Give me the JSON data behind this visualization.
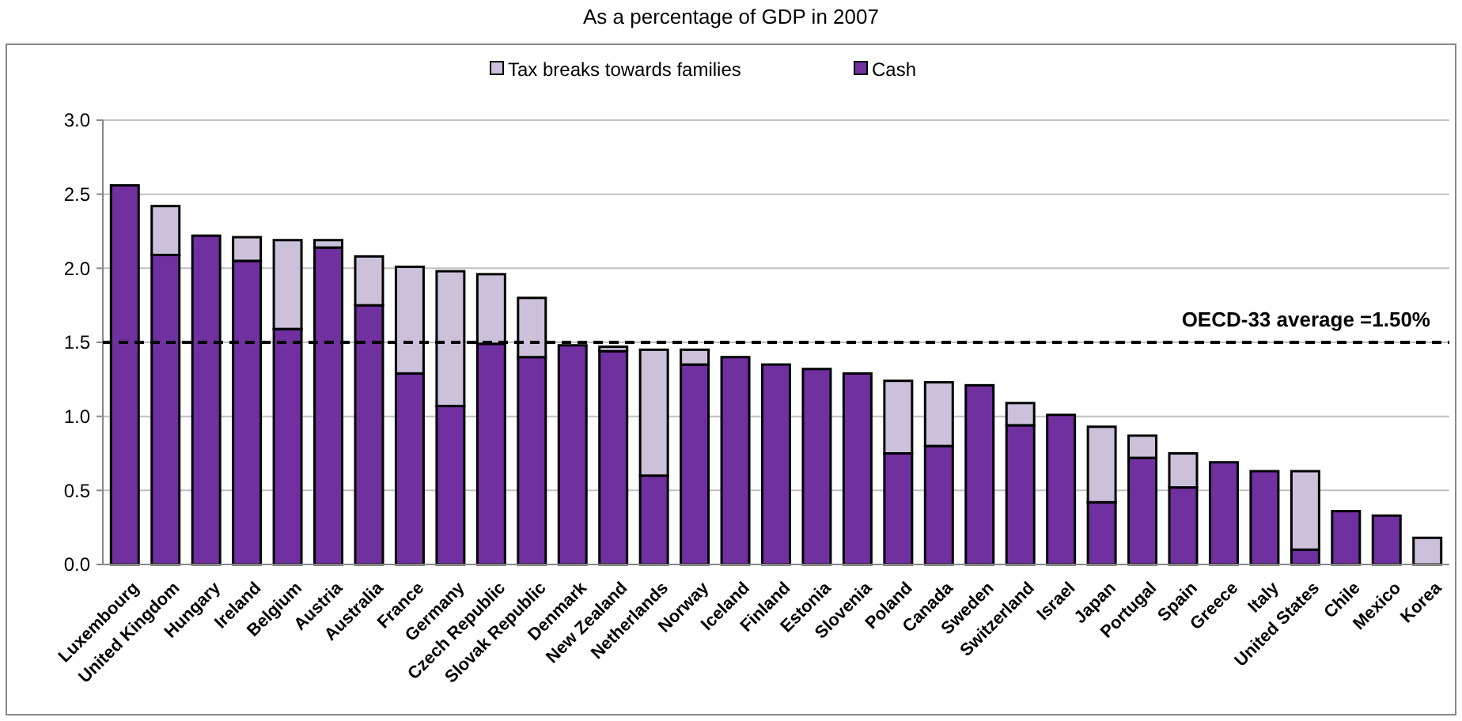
{
  "chart_data": {
    "type": "bar",
    "title": "As a percentage of GDP in 2007",
    "categories": [
      "Luxembourg",
      "United Kingdom",
      "Hungary",
      "Ireland",
      "Belgium",
      "Austria",
      "Australia",
      "France",
      "Germany",
      "Czech Republic",
      "Slovak Republic",
      "Denmark",
      "New Zealand",
      "Netherlands",
      "Norway",
      "Iceland",
      "Finland",
      "Estonia",
      "Slovenia",
      "Poland",
      "Canada",
      "Sweden",
      "Switzerland",
      "Israel",
      "Japan",
      "Portugal",
      "Spain",
      "Greece",
      "Italy",
      "United States",
      "Chile",
      "Mexico",
      "Korea"
    ],
    "series": [
      {
        "name": "Cash",
        "color": "#7030a0",
        "values": [
          2.56,
          2.09,
          2.22,
          2.05,
          1.59,
          2.14,
          1.75,
          1.29,
          1.07,
          1.49,
          1.4,
          1.48,
          1.44,
          0.6,
          1.35,
          1.4,
          1.35,
          1.32,
          1.29,
          0.75,
          0.8,
          1.21,
          0.94,
          1.01,
          0.42,
          0.72,
          0.52,
          0.69,
          0.63,
          0.1,
          0.36,
          0.33,
          0
        ]
      },
      {
        "name": "Tax breaks towards families",
        "color": "#ccc0da",
        "values": [
          0,
          0.33,
          0,
          0.16,
          0.6,
          0.05,
          0.33,
          0.72,
          0.91,
          0.47,
          0.4,
          0,
          0.03,
          0.85,
          0.1,
          0,
          0,
          0,
          0,
          0.49,
          0.43,
          0,
          0.15,
          0,
          0.51,
          0.15,
          0.23,
          0,
          0,
          0.53,
          0,
          0,
          0.18
        ]
      }
    ],
    "stacked": true,
    "ylim": [
      0,
      3
    ],
    "yticks": [
      {
        "value": 0,
        "label": "0.0"
      },
      {
        "value": 0.5,
        "label": "0.5"
      },
      {
        "value": 1,
        "label": "1.0"
      },
      {
        "value": 1.5,
        "label": "1.5"
      },
      {
        "value": 2,
        "label": "2.0"
      },
      {
        "value": 2.5,
        "label": "2.5"
      },
      {
        "value": 3,
        "label": "3.0"
      }
    ],
    "grid": "y",
    "legend": "top",
    "ref_lines": [
      {
        "axis": "y",
        "value": 1.5,
        "label": "OECD-33 average =1.50%",
        "line_style": "dashed",
        "color": "#000000"
      }
    ]
  }
}
